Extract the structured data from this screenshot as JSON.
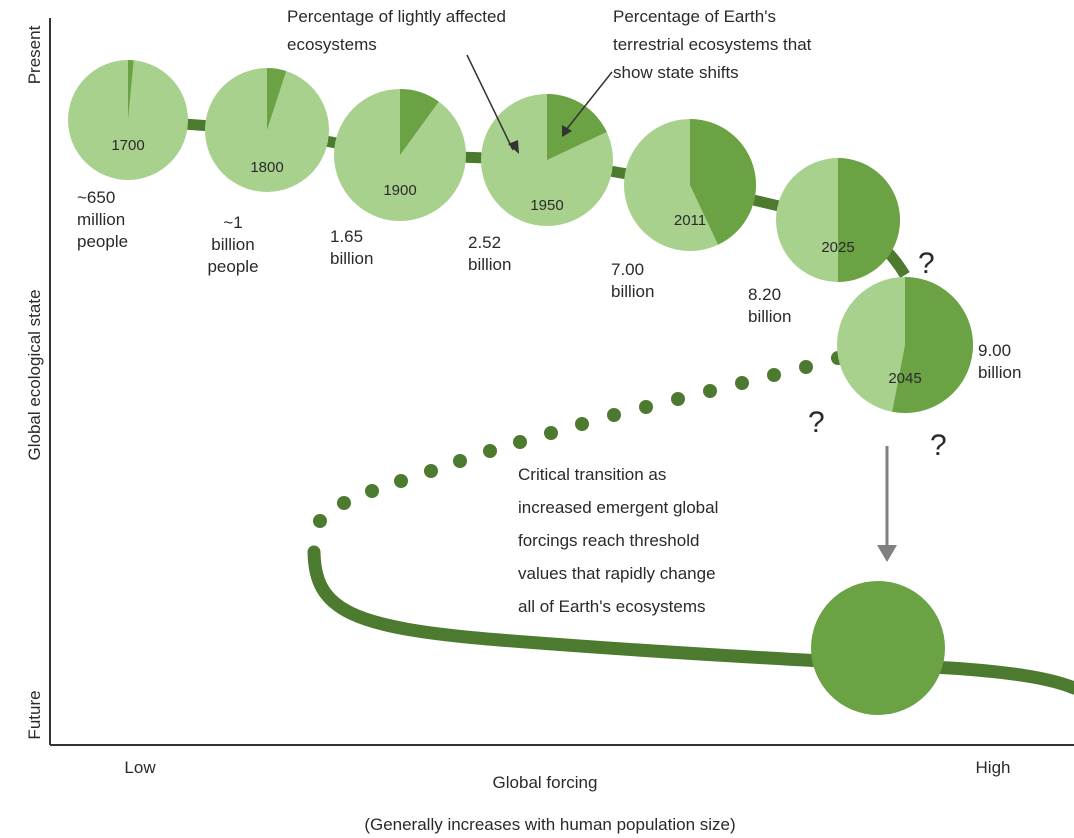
{
  "colors": {
    "light_green": "#a9d18e",
    "dark_green": "#6aa244",
    "path_green": "#4c7a2f",
    "axis": "#333333",
    "arrow": "#808080"
  },
  "axes": {
    "y_label": "Global ecological state",
    "y_top": "Present",
    "y_bottom": "Future",
    "x_label": "Global forcing",
    "x_sublabel": "(Generally increases with human population size)",
    "x_low": "Low",
    "x_high": "High"
  },
  "annotations": {
    "lightly_affected_1": "Percentage of lightly affected",
    "lightly_affected_2": "ecosystems",
    "state_shift_1": "Percentage of Earth's",
    "state_shift_2": "terrestrial ecosystems that",
    "state_shift_3": "show state shifts",
    "transition_1": "Critical transition as",
    "transition_2": "increased emergent global",
    "transition_3": "forcings reach threshold",
    "transition_4": "values that rapidly change",
    "transition_5": "all of Earth's ecosystems",
    "question_mark": "?"
  },
  "stages": [
    {
      "year": "1700",
      "shift_percent": 1.5,
      "pop_lines": [
        "~650",
        "million",
        "people"
      ]
    },
    {
      "year": "1800",
      "shift_percent": 5,
      "pop_lines": [
        "~1",
        "billion",
        "people"
      ]
    },
    {
      "year": "1900",
      "shift_percent": 10,
      "pop_lines": [
        "1.65",
        "billion"
      ]
    },
    {
      "year": "1950",
      "shift_percent": 18,
      "pop_lines": [
        "2.52",
        "billion"
      ]
    },
    {
      "year": "2011",
      "shift_percent": 43,
      "pop_lines": [
        "7.00",
        "billion"
      ]
    },
    {
      "year": "2025",
      "shift_percent": 50,
      "pop_lines": [
        "8.20",
        "billion"
      ]
    },
    {
      "year": "2045",
      "shift_percent": 53,
      "pop_lines": [
        "9.00",
        "billion"
      ]
    }
  ]
}
